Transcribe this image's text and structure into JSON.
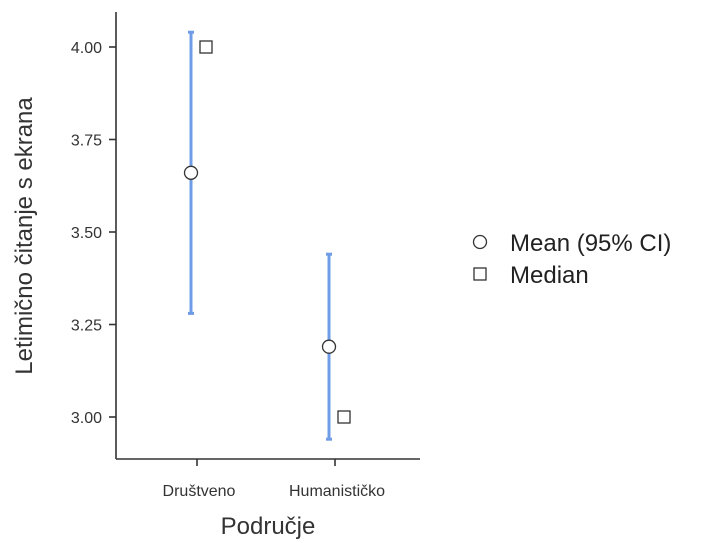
{
  "chart_data": {
    "type": "scatter",
    "xlabel": "Područje",
    "ylabel": "Letimično čitanje s ekrana",
    "categories": [
      "Društveno",
      "Humanističko"
    ],
    "ylim": [
      2.88,
      4.09
    ],
    "yticks": [
      3.0,
      3.25,
      3.5,
      3.75,
      4.0
    ],
    "ytick_labels": [
      "3.00",
      "3.25",
      "3.50",
      "3.75",
      "4.00"
    ],
    "series": [
      {
        "name": "Mean (95% CI)",
        "marker": "circle",
        "values": [
          3.66,
          3.19
        ],
        "ci_low": [
          3.28,
          2.94
        ],
        "ci_high": [
          4.04,
          3.44
        ]
      },
      {
        "name": "Median",
        "marker": "square",
        "values": [
          4.0,
          3.0
        ]
      }
    ],
    "ci_color": "#6e9ce6",
    "marker_stroke": "#333333",
    "legend_position": "right",
    "grid": false
  }
}
